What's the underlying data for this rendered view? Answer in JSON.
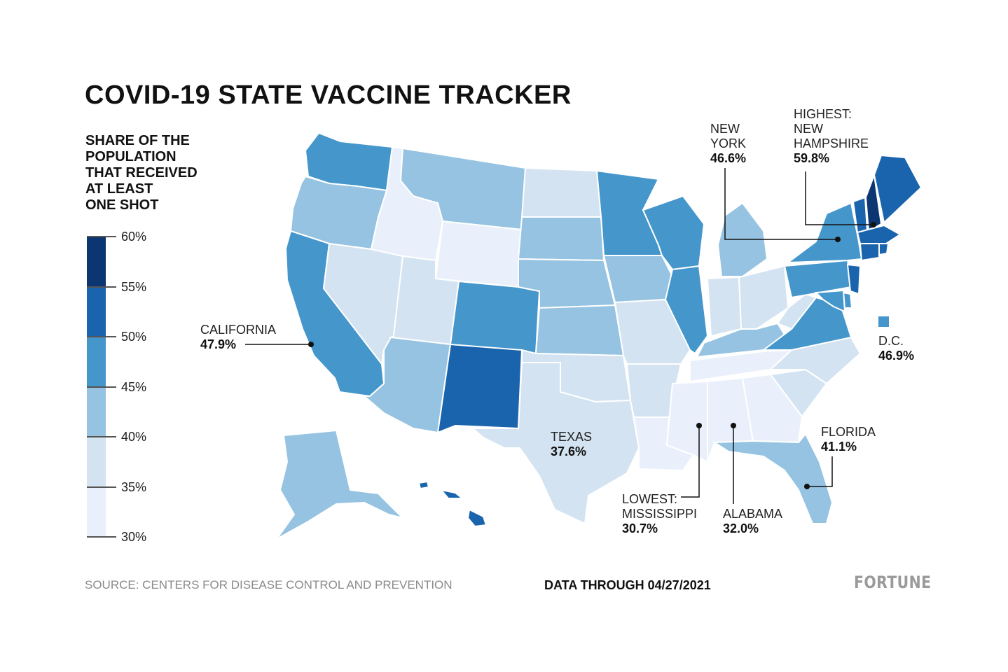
{
  "title": "COVID-19 STATE VACCINE TRACKER",
  "legend": {
    "heading_lines": [
      "SHARE OF THE",
      "POPULATION",
      "THAT RECEIVED",
      "AT LEAST",
      "ONE SHOT"
    ],
    "ticks": [
      "60%",
      "55%",
      "50%",
      "45%",
      "40%",
      "35%",
      "30%"
    ],
    "colors": [
      "#0b3672",
      "#1a64ae",
      "#4596cb",
      "#95c3e1",
      "#d3e3f1",
      "#e9f0fb"
    ]
  },
  "callouts": {
    "california": {
      "name": "CALIFORNIA",
      "value": "47.9%"
    },
    "texas": {
      "name": "TEXAS",
      "value": "37.6%"
    },
    "new_york": {
      "name_lines": [
        "NEW",
        "YORK"
      ],
      "value": "46.6%"
    },
    "new_hampshire": {
      "name_lines": [
        "HIGHEST:",
        "NEW",
        "HAMPSHIRE"
      ],
      "value": "59.8%"
    },
    "dc": {
      "name": "D.C.",
      "value": "46.9%"
    },
    "florida": {
      "name": "FLORIDA",
      "value": "41.1%"
    },
    "mississippi": {
      "name_lines": [
        "LOWEST:",
        "MISSISSIPPI"
      ],
      "value": "30.7%"
    },
    "alabama": {
      "name": "ALABAMA",
      "value": "32.0%"
    }
  },
  "map_data": {
    "type": "choropleth",
    "measure": "share of population with at least one shot",
    "bins": [
      "30-35",
      "35-40",
      "40-45",
      "45-50",
      "50-55",
      "55-60"
    ],
    "states": {
      "WA": "45-50",
      "OR": "40-45",
      "CA": "45-50",
      "NV": "35-40",
      "ID": "30-35",
      "MT": "40-45",
      "WY": "30-35",
      "UT": "35-40",
      "AZ": "40-45",
      "CO": "45-50",
      "NM": "50-55",
      "ND": "35-40",
      "SD": "40-45",
      "NE": "40-45",
      "KS": "40-45",
      "OK": "35-40",
      "TX": "35-40",
      "MN": "45-50",
      "IA": "40-45",
      "MO": "35-40",
      "AR": "35-40",
      "LA": "30-35",
      "WI": "45-50",
      "IL": "45-50",
      "MI": "40-45",
      "IN": "35-40",
      "OH": "35-40",
      "KY": "40-45",
      "TN": "30-35",
      "MS": "30-35",
      "AL": "30-35",
      "GA": "30-35",
      "FL": "40-45",
      "SC": "35-40",
      "NC": "35-40",
      "VA": "45-50",
      "WV": "35-40",
      "PA": "45-50",
      "NY": "45-50",
      "VT": "50-55",
      "NH": "55-60",
      "ME": "50-55",
      "MA": "50-55",
      "RI": "50-55",
      "CT": "50-55",
      "NJ": "50-55",
      "DE": "45-50",
      "MD": "45-50",
      "DC": "45-50",
      "AK": "40-45",
      "HI": "50-55"
    }
  },
  "footer": {
    "source": "SOURCE: CENTERS FOR DISEASE CONTROL AND PREVENTION",
    "date": "DATA THROUGH 04/27/2021",
    "brand": "FORTUNE"
  }
}
